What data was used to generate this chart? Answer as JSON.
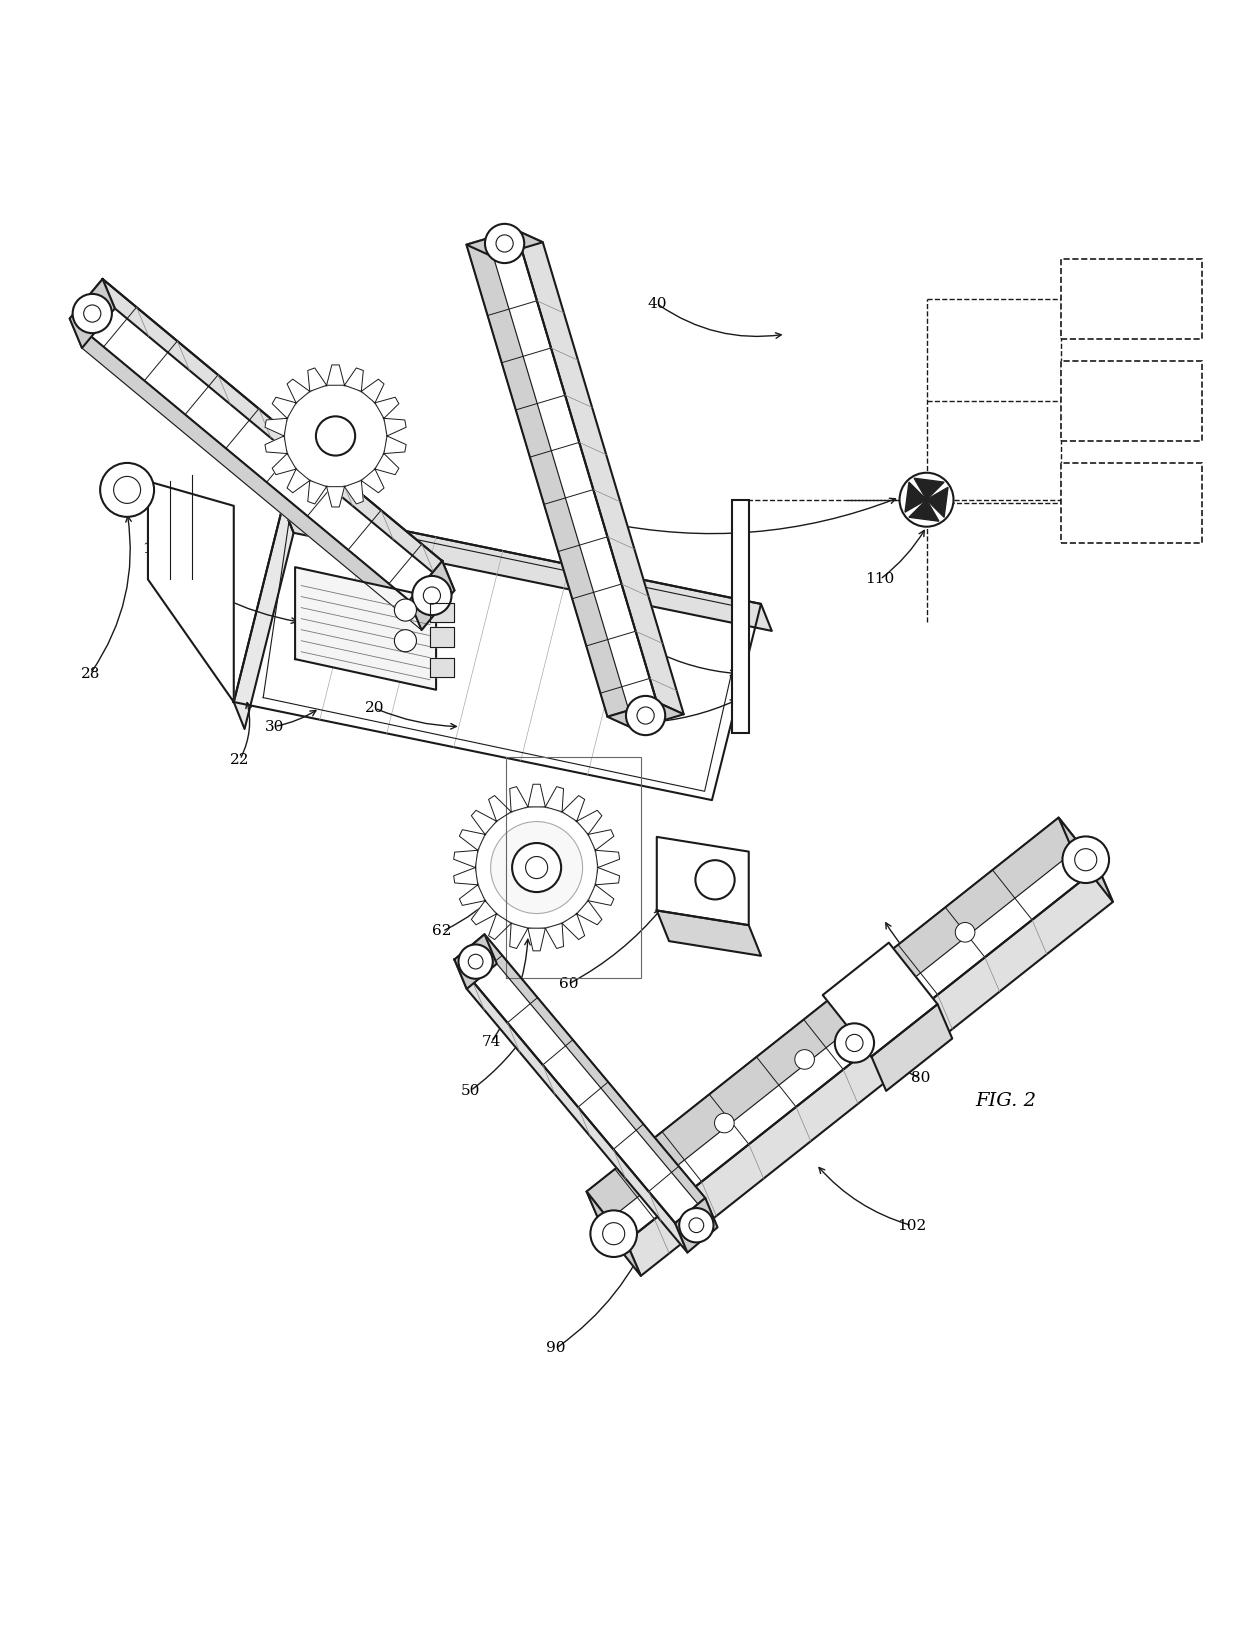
{
  "background_color": "#ffffff",
  "line_color": "#1a1a1a",
  "fig_label": "FIG. 2"
}
